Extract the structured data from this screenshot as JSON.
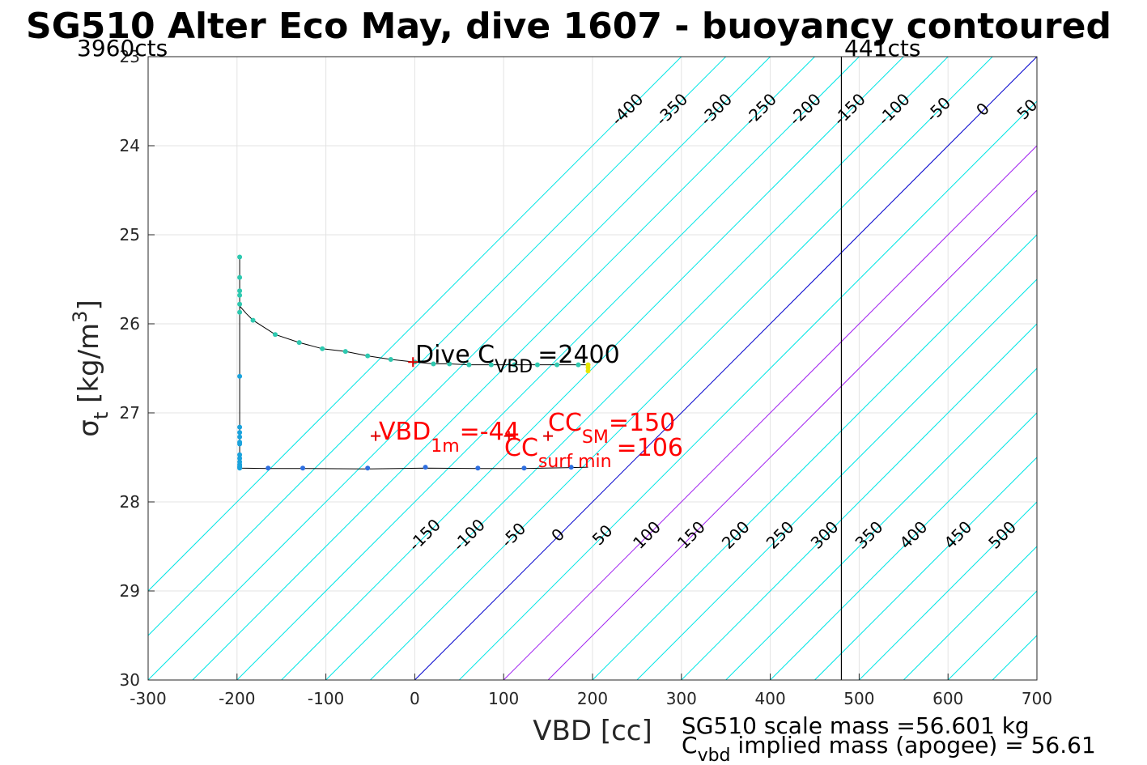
{
  "chart_data": {
    "type": "scatter",
    "title": "SG510 Alter Eco May, dive 1607 - buoyancy contoured",
    "xlabel": "VBD [cc]",
    "ylabel": {
      "main": "σ",
      "sub": "t",
      "unit": "[kg/m",
      "sup": "3",
      "close": "]"
    },
    "xlim": [
      -300,
      700
    ],
    "ylim": [
      23,
      30
    ],
    "y_reversed": true,
    "grid": true,
    "x_ticks": [
      -300,
      -200,
      -100,
      0,
      100,
      200,
      300,
      400,
      500,
      600,
      700
    ],
    "y_ticks": [
      23,
      24,
      25,
      26,
      27,
      28,
      29,
      30
    ],
    "x_tick_labels": [
      "-300",
      "-200",
      "-100",
      "0",
      "100",
      "200",
      "300",
      "400",
      "500",
      "600",
      "700"
    ],
    "y_tick_labels": [
      "23",
      "24",
      "25",
      "26",
      "27",
      "28",
      "29",
      "30"
    ],
    "corner_labels": {
      "left": "3960cts",
      "right": "441cts"
    },
    "vbd_limit_line": {
      "x": 480
    },
    "contours": {
      "slope_cc_per_sigma": 100,
      "values": [
        -400,
        -350,
        -300,
        -250,
        -200,
        -150,
        -100,
        -50,
        0,
        50,
        100,
        150,
        200,
        250,
        300,
        350,
        400,
        450,
        500,
        550,
        600,
        650,
        700,
        750,
        800,
        850
      ],
      "highlight": {
        "0": "#0000cc",
        "100": "#a020f0",
        "150": "#a020f0"
      },
      "default_color": "#00e5e5",
      "labels_top": [
        {
          "v": -400,
          "text": "-400"
        },
        {
          "v": -350,
          "text": "-350"
        },
        {
          "v": -300,
          "text": "-300"
        },
        {
          "v": -250,
          "text": "-250"
        },
        {
          "v": -200,
          "text": "-200"
        },
        {
          "v": -150,
          "text": "-150"
        },
        {
          "v": -100,
          "text": "-100"
        },
        {
          "v": -50,
          "text": "-50"
        },
        {
          "v": 0,
          "text": "0"
        },
        {
          "v": 50,
          "text": "50"
        },
        {
          "v": 100,
          "text": "100"
        },
        {
          "v": 150,
          "text": "150"
        },
        {
          "v": 200,
          "text": "200"
        },
        {
          "v": 250,
          "text": "250"
        },
        {
          "v": 300,
          "text": "300"
        },
        {
          "v": 350,
          "text": "350"
        },
        {
          "v": 400,
          "text": "400"
        },
        {
          "v": 450,
          "text": "450"
        },
        {
          "v": 500,
          "text": "500"
        }
      ],
      "labels_bottom": [
        {
          "v": -150,
          "text": "-150"
        },
        {
          "v": -100,
          "text": "-100"
        },
        {
          "v": -50,
          "text": "-50"
        },
        {
          "v": 0,
          "text": "0"
        },
        {
          "v": 50,
          "text": "50"
        },
        {
          "v": 100,
          "text": "100"
        },
        {
          "v": 150,
          "text": "150"
        },
        {
          "v": 200,
          "text": "200"
        },
        {
          "v": 250,
          "text": "250"
        },
        {
          "v": 300,
          "text": "300"
        },
        {
          "v": 350,
          "text": "350"
        },
        {
          "v": 400,
          "text": "400"
        },
        {
          "v": 450,
          "text": "450"
        },
        {
          "v": 500,
          "text": "500"
        }
      ]
    },
    "series": [
      {
        "role": "dive_points",
        "color": "#2ec9b0",
        "points": [
          [
            -197,
            25.25
          ],
          [
            -197,
            25.48
          ],
          [
            -197,
            25.63
          ],
          [
            -197,
            25.68
          ],
          [
            -197,
            25.78
          ],
          [
            -197,
            25.87
          ],
          [
            -182,
            25.96
          ],
          [
            -157,
            26.12
          ],
          [
            -130,
            26.21
          ],
          [
            -104,
            26.28
          ],
          [
            -78,
            26.31
          ],
          [
            -53,
            26.36
          ],
          [
            -27,
            26.4
          ],
          [
            0,
            26.43
          ],
          [
            21,
            26.45
          ],
          [
            39,
            26.45
          ],
          [
            61,
            26.46
          ],
          [
            86,
            26.46
          ],
          [
            112,
            26.46
          ],
          [
            138,
            26.46
          ],
          [
            160,
            26.46
          ],
          [
            184,
            26.46
          ]
        ]
      },
      {
        "role": "climb_points",
        "color": "#1aa3dd",
        "points": [
          [
            -197,
            26.59
          ],
          [
            -197,
            27.16
          ],
          [
            -197,
            27.22
          ],
          [
            -197,
            27.27
          ],
          [
            -197,
            27.33
          ],
          [
            -197,
            27.35
          ],
          [
            -197,
            27.47
          ],
          [
            -197,
            27.51
          ],
          [
            -197,
            27.55
          ],
          [
            -197,
            27.58
          ],
          [
            -197,
            27.6
          ],
          [
            -197,
            27.61
          ],
          [
            -197,
            27.62
          ]
        ]
      },
      {
        "role": "climb_bottom_points",
        "color": "#2f6fe0",
        "points": [
          [
            -165,
            27.62
          ],
          [
            -126,
            27.62
          ],
          [
            -53,
            27.62
          ],
          [
            12,
            27.61
          ],
          [
            71,
            27.62
          ],
          [
            123,
            27.62
          ],
          [
            176,
            27.61
          ]
        ]
      },
      {
        "role": "apogee_points",
        "color": "#e6e600",
        "points": [
          [
            195,
            26.46
          ],
          [
            195,
            26.49
          ],
          [
            195,
            26.53
          ]
        ]
      }
    ],
    "trajectory_curves": [
      [
        [
          -197,
          25.25
        ],
        [
          -197,
          25.8
        ],
        [
          -190,
          25.88
        ],
        [
          -182,
          25.96
        ],
        [
          -157,
          26.12
        ],
        [
          -130,
          26.21
        ],
        [
          -104,
          26.28
        ],
        [
          -78,
          26.31
        ],
        [
          -53,
          26.36
        ],
        [
          -27,
          26.4
        ],
        [
          0,
          26.43
        ],
        [
          21,
          26.45
        ],
        [
          39,
          26.45
        ],
        [
          61,
          26.46
        ],
        [
          86,
          26.46
        ],
        [
          112,
          26.46
        ],
        [
          138,
          26.46
        ],
        [
          160,
          26.46
        ],
        [
          184,
          26.46
        ],
        [
          195,
          26.46
        ]
      ],
      [
        [
          -197,
          25.8
        ],
        [
          -197,
          27.62
        ],
        [
          -165,
          27.625
        ],
        [
          -126,
          27.625
        ],
        [
          -53,
          27.63
        ],
        [
          12,
          27.62
        ],
        [
          71,
          27.625
        ],
        [
          123,
          27.625
        ],
        [
          176,
          27.615
        ],
        [
          195,
          27.61
        ]
      ]
    ],
    "markers": [
      {
        "label": "dive_cvbd_marker",
        "x": -2,
        "y": 26.43,
        "color": "#e00000",
        "symbol": "+"
      },
      {
        "label": "vbd_1m_marker",
        "x": -44,
        "y": 27.26,
        "color": "#e00000",
        "symbol": "+"
      },
      {
        "label": "cc_sm_marker",
        "x": 150,
        "y": 27.26,
        "color": "#e00000",
        "symbol": "+"
      },
      {
        "label": "cc_surf_min_marker",
        "x": 106,
        "y": 27.26,
        "color": "#e00000",
        "symbol": "+"
      }
    ],
    "annotations": {
      "dive_cvbd": {
        "pre": "Dive C",
        "sub": "VBD",
        "post": "=2400"
      },
      "vbd_1m": {
        "pre": "VBD",
        "sub": "1m",
        "post": "=-44"
      },
      "cc_sm": {
        "pre": "CC",
        "sub": "SM",
        "post": "=150"
      },
      "cc_surf_min": {
        "pre": "CC",
        "sub": "surf min",
        "post": "=106"
      }
    },
    "footer": {
      "line1": "SG510 scale mass =56.601 kg",
      "line2_pre": "C",
      "line2_sub": "vbd",
      "line2_post": " implied mass (apogee) = 56.61"
    }
  }
}
